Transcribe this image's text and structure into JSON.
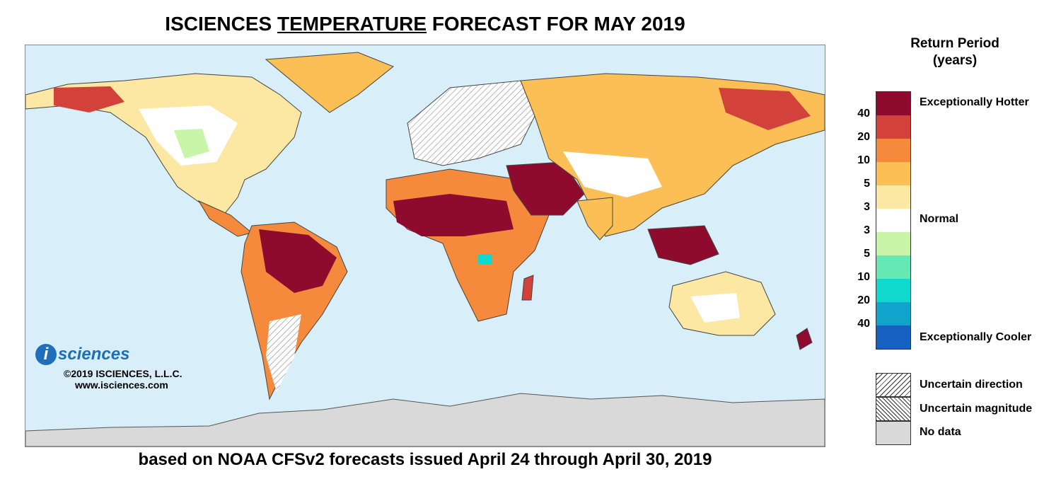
{
  "title": {
    "prefix": "ISCIENCES ",
    "underlined": "TEMPERATURE",
    "suffix": " FORECAST FOR MAY 2019"
  },
  "subtitle": "based on NOAA CFSv2 forecasts issued April 24 through April 30, 2019",
  "logo": {
    "mark": "i",
    "brand": "sciences",
    "copyright": "©2019 ISCIENCES, L.L.C.",
    "website": "www.isciences.com"
  },
  "legend": {
    "title_line1": "Return Period",
    "title_line2": "(years)",
    "labels": {
      "hot": "Exceptionally Hotter",
      "normal": "Normal",
      "cool": "Exceptionally Cooler"
    },
    "ticks": [
      "40",
      "20",
      "10",
      "5",
      "3",
      "3",
      "5",
      "10",
      "20",
      "40"
    ],
    "colors": [
      "#8e0b2e",
      "#d2423b",
      "#f58a3c",
      "#fbbf56",
      "#fde8a3",
      "#ffffff",
      "#c9f5a8",
      "#66e8b4",
      "#10d8cc",
      "#10a3cc",
      "#1560c0"
    ],
    "hatch": {
      "direction": "Uncertain direction",
      "magnitude": "Uncertain magnitude",
      "nodata": "No data"
    }
  },
  "map_colors": {
    "ocean": "#d8eef8",
    "nodata": "#d9d9d9"
  }
}
